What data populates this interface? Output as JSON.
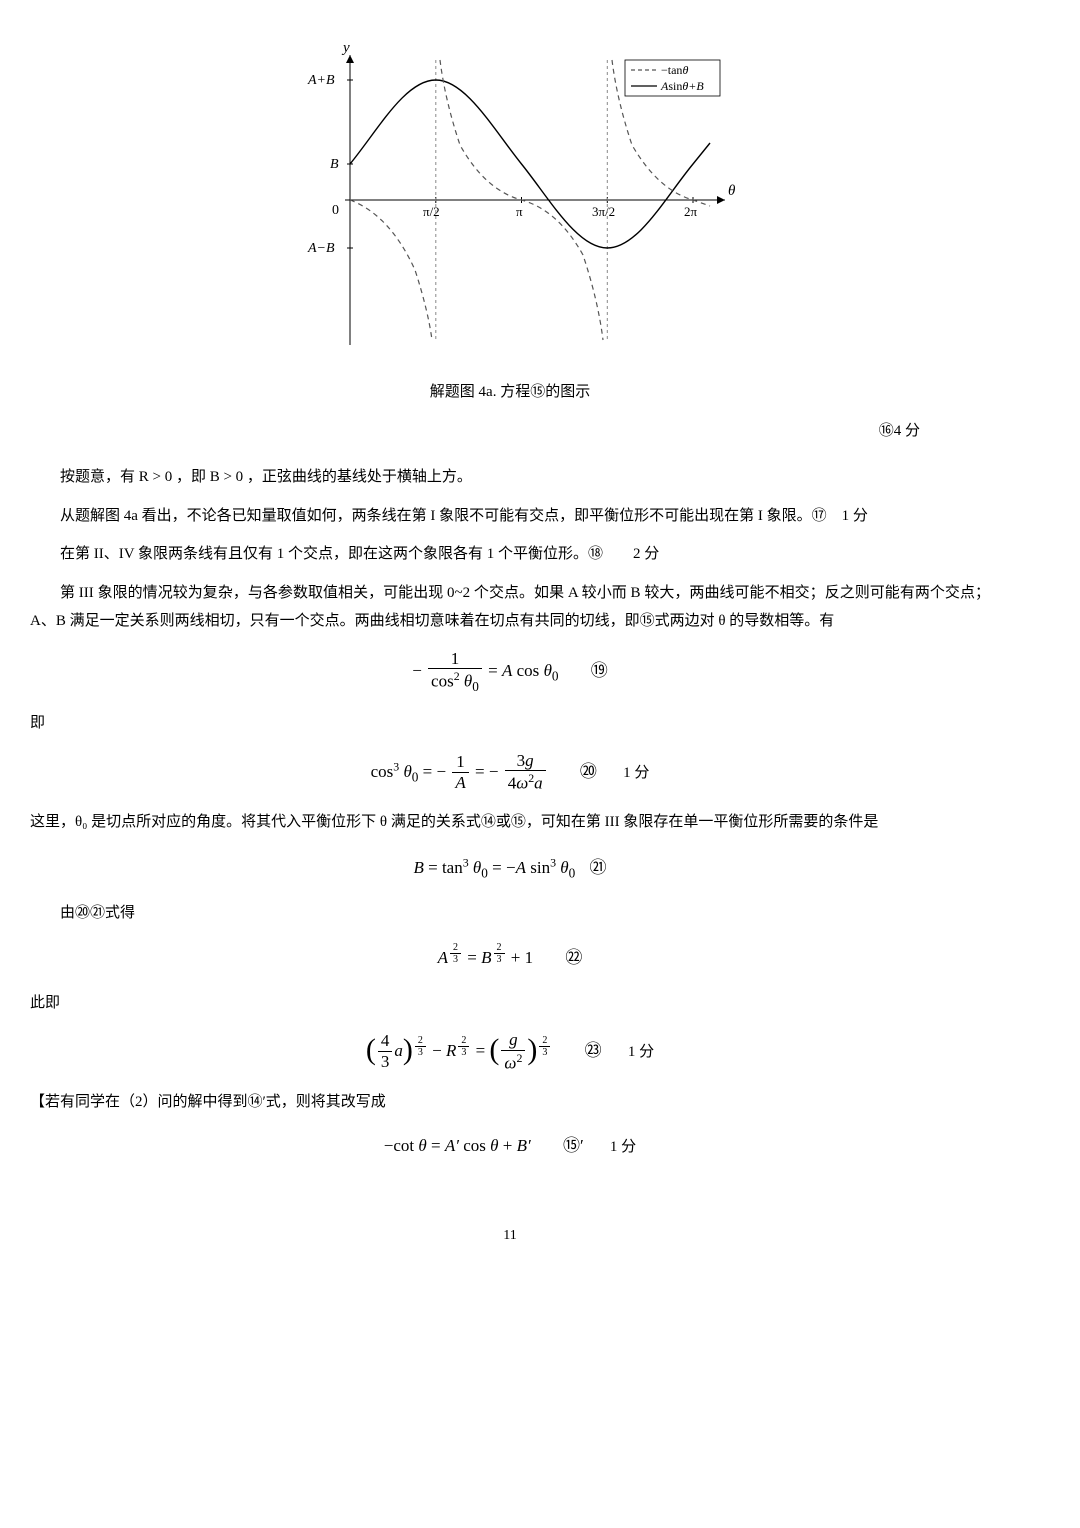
{
  "figure": {
    "caption": "解题图 4a. 方程⑮的图示",
    "y_axis_label": "y",
    "x_axis_label": "θ",
    "y_ticks": [
      "A+B",
      "B",
      "0",
      "A−B"
    ],
    "x_ticks": [
      "π/2",
      "π",
      "3π/2",
      "2π"
    ],
    "legend": {
      "tan_label": "−tanθ",
      "sin_label": "Asinθ+B"
    },
    "colors": {
      "axis": "#000000",
      "grid": "#bdbdbd",
      "sine_curve": "#000000",
      "tan_curve": "#555555",
      "legend_border": "#000000",
      "background": "#ffffff"
    },
    "plot": {
      "xlim": [
        0,
        6.8
      ],
      "ylim": [
        -3.5,
        3.5
      ],
      "A": 2.1,
      "B": 0.9,
      "asymptotes_x": [
        1.5708,
        4.7124
      ]
    }
  },
  "score16": "⑯4 分",
  "para1": "按题意，有 R > 0 ，即 B > 0 ，正弦曲线的基线处于横轴上方。",
  "para2": "从题解图 4a 看出，不论各已知量取值如何，两条线在第 I 象限不可能有交点，即平衡位形不可能出现在第 I 象限。⑰　1 分",
  "para3": "在第 II、IV 象限两条线有且仅有 1 个交点，即在这两个象限各有 1 个平衡位形。⑱　　2 分",
  "para4": "第 III 象限的情况较为复杂，与各参数取值相关，可能出现 0~2 个交点。如果 A 较小而 B 较大，两曲线可能不相交；反之则可能有两个交点；A、B 满足一定关系则两线相切，只有一个交点。两曲线相切意味着在切点有共同的切线，即⑮式两边对 θ 的导数相等。有",
  "eq19": {
    "html": "− <span class=\"frac\"><span class=\"n\">1</span><span class=\"d\">cos<sup>2</sup> <span class=\"ital\">θ</span><sub>0</sub></span></span> = <span class=\"ital\">A</span> cos <span class=\"ital\">θ</span><sub>0</sub>",
    "label": "⑲"
  },
  "label_ji": "即",
  "eq20": {
    "html": "cos<sup>3</sup> <span class=\"ital\">θ</span><sub>0</sub> = − <span class=\"frac\"><span class=\"n\">1</span><span class=\"d\"><span class=\"ital\">A</span></span></span> = − <span class=\"frac\"><span class=\"n\">3<span class=\"ital\">g</span></span><span class=\"d\">4<span class=\"ital\">ω</span><sup>2</sup><span class=\"ital\">a</span></span></span>",
    "label": "⑳",
    "score": "1 分"
  },
  "para5": "这里，θ₀ 是切点所对应的角度。将其代入平衡位形下 θ 满足的关系式⑭或⑮，可知在第 III 象限存在单一平衡位形所需要的条件是",
  "eq21": {
    "html": "<span class=\"ital\">B</span> = tan<sup>3</sup> <span class=\"ital\">θ</span><sub>0</sub> = −<span class=\"ital\">A</span> sin<sup>3</sup> <span class=\"ital\">θ</span><sub>0</sub>",
    "label": "㉑"
  },
  "para6": "由⑳㉑式得",
  "eq22": {
    "html": "<span class=\"ital\">A</span><sup><span class=\"frac\" style=\"font-size:10px\"><span class=\"n\">2</span><span class=\"d\">3</span></span></sup> = <span class=\"ital\">B</span><sup><span class=\"frac\" style=\"font-size:10px\"><span class=\"n\">2</span><span class=\"d\">3</span></span></sup> + 1",
    "label": "㉒"
  },
  "label_ciji": "此即",
  "eq23": {
    "html": "<span class=\"paren-big\">(</span><span class=\"frac\"><span class=\"n\">4</span><span class=\"d\">3</span></span><span class=\"ital\">a</span><span class=\"paren-big\">)</span><sup><span class=\"frac\" style=\"font-size:10px\"><span class=\"n\">2</span><span class=\"d\">3</span></span></sup> − <span class=\"ital\">R</span><sup><span class=\"frac\" style=\"font-size:10px\"><span class=\"n\">2</span><span class=\"d\">3</span></span></sup> = <span class=\"paren-big\">(</span><span class=\"frac\"><span class=\"n\"><span class=\"ital\">g</span></span><span class=\"d\"><span class=\"ital\">ω</span><sup>2</sup></span></span><span class=\"paren-big\">)</span><sup><span class=\"frac\" style=\"font-size:10px\"><span class=\"n\">2</span><span class=\"d\">3</span></span></sup>",
    "label": "㉓",
    "score": "1 分"
  },
  "para7": "【若有同学在（2）问的解中得到⑭′式，则将其改写成",
  "eq15p": {
    "html": "−cot <span class=\"ital\">θ</span> = <span class=\"ital\">A′</span> cos <span class=\"ital\">θ</span> + <span class=\"ital\">B′</span>",
    "label": "⑮′",
    "score": "1 分"
  },
  "page_number": "11"
}
